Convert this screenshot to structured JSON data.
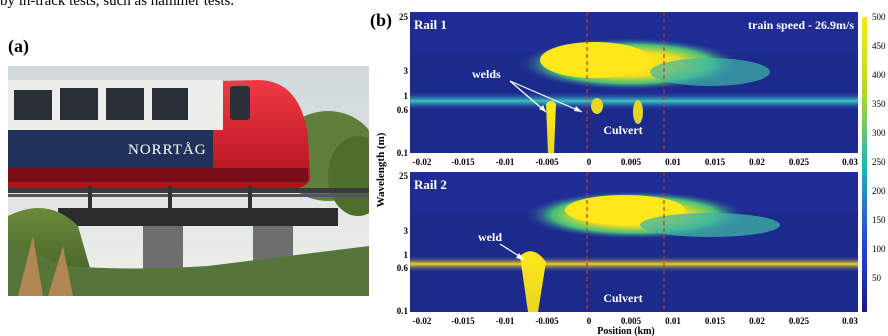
{
  "caption_fragment": "by in-track tests, such as hammer tests.",
  "panel_a": {
    "label": "(a)",
    "train_branding": "NORRTÅG"
  },
  "panel_b": {
    "label": "(b)",
    "ylabel": "Wavelength (m)",
    "xlabel": "Position (km)",
    "speed_note": "train speed - 26.9m/s",
    "x_ticks": [
      "-0.02",
      "-0.015",
      "-0.01",
      "-0.005",
      "0",
      "0.005",
      "0.01",
      "0.015",
      "0.02",
      "0.025",
      "0.03"
    ],
    "colorbar_ticks": [
      "50",
      "100",
      "150",
      "200",
      "250",
      "300",
      "350",
      "400",
      "450",
      "500"
    ],
    "rails": [
      {
        "name": "Rail 1",
        "annotation": "welds",
        "culvert_label": "Culvert",
        "y_ticks": [
          "25",
          "3",
          "1",
          "0.6",
          "0.1"
        ]
      },
      {
        "name": "Rail 2",
        "annotation": "weld",
        "culvert_label": "Culvert",
        "y_ticks": [
          "25",
          "3",
          "1",
          "0.6",
          "0.1"
        ]
      }
    ]
  },
  "colors": {
    "heat_low": "#1a2a8c",
    "heat_mid": "#2fb9b4",
    "heat_high": "#ffe81a",
    "train_red": "#d8202f",
    "culvert_line": "#c0392b"
  },
  "chart_data": {
    "type": "heatmap",
    "x_range_km": [
      -0.02,
      0.03
    ],
    "y_range_m": [
      0.1,
      25
    ],
    "y_scale": "log",
    "color_range": [
      0,
      500
    ],
    "culvert_span_km": [
      0,
      0.009
    ],
    "panels": [
      {
        "name": "Rail 1",
        "strong_band_m": 0.6,
        "high_energy_region_km": [
          0,
          0.022
        ],
        "weld_positions_km": [
          -0.008,
          0.0,
          0.004
        ]
      },
      {
        "name": "Rail 2",
        "strong_band_m": 0.6,
        "high_energy_region_km": [
          0,
          0.022
        ],
        "weld_positions_km": [
          -0.008
        ]
      }
    ]
  }
}
